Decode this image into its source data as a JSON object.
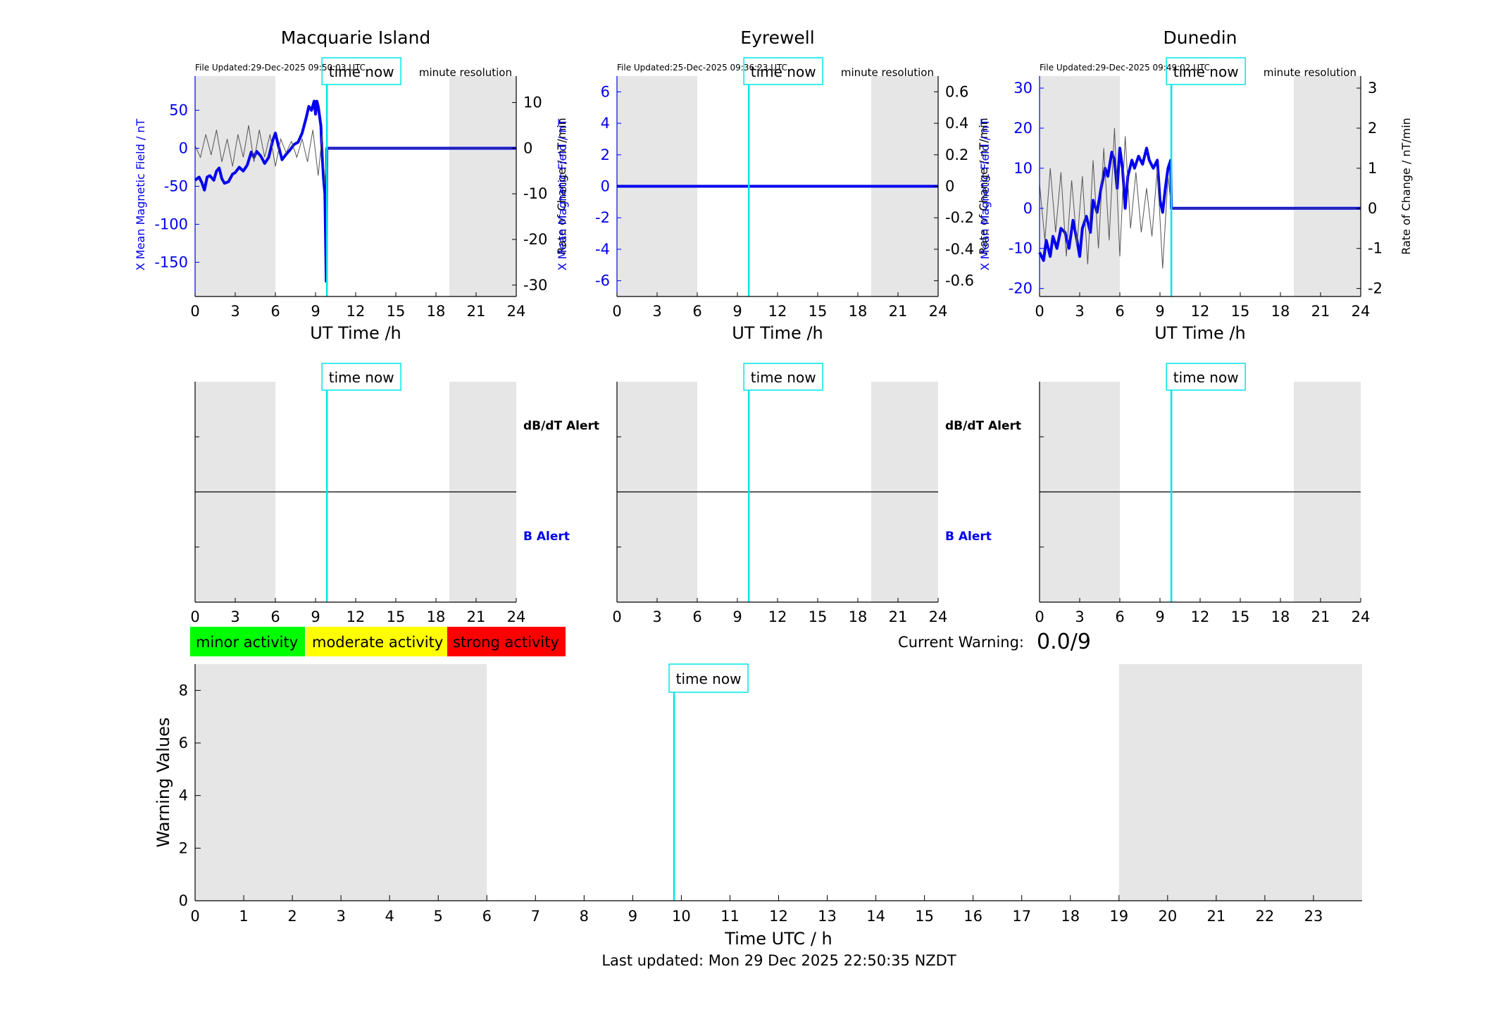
{
  "colors": {
    "field": "#0000ee",
    "rate": "#000000",
    "time_now": "#00e5e5",
    "night_shade": "#e6e6e6",
    "minor": "#00ff00",
    "moderate": "#ffff00",
    "strong": "#ff0000"
  },
  "chart_data": [
    {
      "id": "macquarie-mag",
      "type": "line",
      "title": "Macquarie Island",
      "file_updated": "File Updated:29-Dec-2025 09:50:03 UTC",
      "resolution": "minute resolution",
      "xlabel": "UT Time /h",
      "ylabel_left": "X Mean Magnetic Field / nT",
      "ylabel_right": "Rate of Change / nT/min",
      "xlim": [
        0,
        24
      ],
      "ylim_left": [
        -195,
        95
      ],
      "ylim_right": [
        -32.5,
        15.8
      ],
      "xticks": [
        0,
        3,
        6,
        9,
        12,
        15,
        18,
        21,
        24
      ],
      "yticks_left": [
        -150,
        -100,
        -50,
        0,
        50
      ],
      "yticks_right": [
        -30,
        -20,
        -10,
        0,
        10
      ],
      "night": [
        [
          0,
          6
        ],
        [
          19,
          24
        ]
      ],
      "time_now": 9.85,
      "time_now_label": "time now",
      "series": [
        {
          "axis": "left",
          "points": [
            [
              0,
              -42
            ],
            [
              0.3,
              -38
            ],
            [
              0.5,
              -45
            ],
            [
              0.7,
              -55
            ],
            [
              0.9,
              -38
            ],
            [
              1.1,
              -36
            ],
            [
              1.4,
              -42
            ],
            [
              1.6,
              -30
            ],
            [
              1.8,
              -26
            ],
            [
              2.0,
              -40
            ],
            [
              2.2,
              -46
            ],
            [
              2.5,
              -44
            ],
            [
              2.8,
              -34
            ],
            [
              3.0,
              -32
            ],
            [
              3.3,
              -25
            ],
            [
              3.6,
              -30
            ],
            [
              3.9,
              -22
            ],
            [
              4.2,
              -5
            ],
            [
              4.4,
              -12
            ],
            [
              4.6,
              -4
            ],
            [
              4.9,
              -10
            ],
            [
              5.2,
              -20
            ],
            [
              5.5,
              -12
            ],
            [
              5.8,
              10
            ],
            [
              6.0,
              20
            ],
            [
              6.2,
              5
            ],
            [
              6.5,
              -15
            ],
            [
              6.8,
              -8
            ],
            [
              7.1,
              -2
            ],
            [
              7.4,
              5
            ],
            [
              7.7,
              8
            ],
            [
              8.0,
              20
            ],
            [
              8.3,
              40
            ],
            [
              8.5,
              55
            ],
            [
              8.7,
              50
            ],
            [
              8.9,
              62
            ],
            [
              9.0,
              45
            ],
            [
              9.1,
              62
            ],
            [
              9.2,
              55
            ],
            [
              9.4,
              30
            ],
            [
              9.5,
              -10
            ],
            [
              9.6,
              -40
            ],
            [
              9.7,
              -60
            ],
            [
              9.75,
              -120
            ],
            [
              9.8,
              -175
            ],
            [
              9.85,
              0
            ],
            [
              24,
              0
            ]
          ]
        },
        {
          "axis": "right",
          "points": [
            [
              0,
              0.5
            ],
            [
              0.4,
              -2
            ],
            [
              0.8,
              3
            ],
            [
              1.2,
              -1.5
            ],
            [
              1.6,
              4
            ],
            [
              2.0,
              -3
            ],
            [
              2.4,
              2
            ],
            [
              2.8,
              -4
            ],
            [
              3.2,
              3
            ],
            [
              3.6,
              -2
            ],
            [
              4.0,
              5
            ],
            [
              4.4,
              -3
            ],
            [
              4.8,
              4
            ],
            [
              5.2,
              -2
            ],
            [
              5.6,
              3
            ],
            [
              6.0,
              -4
            ],
            [
              6.4,
              2
            ],
            [
              6.8,
              -1
            ],
            [
              7.2,
              1.5
            ],
            [
              7.6,
              -2
            ],
            [
              8.0,
              2
            ],
            [
              8.4,
              -3
            ],
            [
              8.8,
              4
            ],
            [
              9.2,
              -6
            ],
            [
              9.5,
              3
            ],
            [
              9.7,
              -8
            ],
            [
              9.85,
              0
            ],
            [
              24,
              0
            ]
          ]
        }
      ]
    },
    {
      "id": "eyrewell-mag",
      "type": "line",
      "title": "Eyrewell",
      "file_updated": "File Updated:25-Dec-2025 09:36:23 UTC",
      "resolution": "minute resolution",
      "xlabel": "UT Time /h",
      "ylabel_left": "X Mean Magnetic Field / nT",
      "ylabel_right": "Rate of Change / nT/min",
      "xlim": [
        0,
        24
      ],
      "ylim_left": [
        -7,
        7
      ],
      "ylim_right": [
        -0.7,
        0.7
      ],
      "xticks": [
        0,
        3,
        6,
        9,
        12,
        15,
        18,
        21,
        24
      ],
      "yticks_left": [
        -6,
        -4,
        -2,
        0,
        2,
        4,
        6
      ],
      "yticks_right": [
        -0.6,
        -0.4,
        -0.2,
        0,
        0.2,
        0.4,
        0.6
      ],
      "night": [
        [
          0,
          6
        ],
        [
          19,
          24
        ]
      ],
      "time_now": 9.85,
      "time_now_label": "time now",
      "series": [
        {
          "axis": "left",
          "points": [
            [
              0,
              0
            ],
            [
              24,
              0
            ]
          ]
        }
      ]
    },
    {
      "id": "dunedin-mag",
      "type": "line",
      "title": "Dunedin",
      "file_updated": "File Updated:29-Dec-2025 09:49:02 UTC",
      "resolution": "minute resolution",
      "xlabel": "UT Time /h",
      "ylabel_left": "X Mean Magnetic Field / nT",
      "ylabel_right": "Rate of Change / nT/min",
      "xlim": [
        0,
        24
      ],
      "ylim_left": [
        -22,
        33
      ],
      "ylim_right": [
        -2.2,
        3.3
      ],
      "xticks": [
        0,
        3,
        6,
        9,
        12,
        15,
        18,
        21,
        24
      ],
      "yticks_left": [
        -20,
        -10,
        0,
        10,
        20,
        30
      ],
      "yticks_right": [
        -2,
        -1,
        0,
        1,
        2,
        3
      ],
      "night": [
        [
          0,
          6
        ],
        [
          19,
          24
        ]
      ],
      "time_now": 9.85,
      "time_now_label": "time now",
      "series": [
        {
          "axis": "left",
          "points": [
            [
              0,
              -11
            ],
            [
              0.3,
              -13
            ],
            [
              0.5,
              -8
            ],
            [
              0.8,
              -12
            ],
            [
              1.0,
              -7
            ],
            [
              1.3,
              -10
            ],
            [
              1.6,
              -5
            ],
            [
              1.9,
              -6
            ],
            [
              2.2,
              -10
            ],
            [
              2.5,
              -3
            ],
            [
              2.8,
              -8
            ],
            [
              3.0,
              -12
            ],
            [
              3.2,
              -5
            ],
            [
              3.5,
              -2
            ],
            [
              3.8,
              -6
            ],
            [
              4.0,
              2
            ],
            [
              4.3,
              -1
            ],
            [
              4.6,
              5
            ],
            [
              4.9,
              10
            ],
            [
              5.1,
              8
            ],
            [
              5.4,
              14
            ],
            [
              5.6,
              12
            ],
            [
              5.8,
              5
            ],
            [
              6.0,
              15
            ],
            [
              6.2,
              10
            ],
            [
              6.4,
              0
            ],
            [
              6.6,
              8
            ],
            [
              6.9,
              12
            ],
            [
              7.1,
              10
            ],
            [
              7.4,
              13
            ],
            [
              7.7,
              11
            ],
            [
              8.0,
              15
            ],
            [
              8.2,
              12
            ],
            [
              8.5,
              10
            ],
            [
              8.8,
              12
            ],
            [
              9.0,
              2
            ],
            [
              9.2,
              -1
            ],
            [
              9.4,
              5
            ],
            [
              9.6,
              10
            ],
            [
              9.8,
              12
            ],
            [
              9.85,
              0
            ],
            [
              24,
              0
            ]
          ]
        },
        {
          "axis": "right",
          "points": [
            [
              0,
              0.6
            ],
            [
              0.4,
              -0.8
            ],
            [
              0.8,
              1.0
            ],
            [
              1.2,
              -0.6
            ],
            [
              1.6,
              0.9
            ],
            [
              2.0,
              -1.2
            ],
            [
              2.4,
              0.7
            ],
            [
              2.8,
              -0.9
            ],
            [
              3.2,
              0.8
            ],
            [
              3.6,
              -1.4
            ],
            [
              4.0,
              1.2
            ],
            [
              4.4,
              -1.0
            ],
            [
              4.8,
              1.5
            ],
            [
              5.2,
              -0.8
            ],
            [
              5.6,
              2.0
            ],
            [
              6.0,
              -1.2
            ],
            [
              6.4,
              1.8
            ],
            [
              6.8,
              -0.5
            ],
            [
              7.2,
              0.9
            ],
            [
              7.6,
              -0.6
            ],
            [
              8.0,
              0.5
            ],
            [
              8.4,
              -0.7
            ],
            [
              8.8,
              1.0
            ],
            [
              9.2,
              -1.5
            ],
            [
              9.6,
              0.8
            ],
            [
              9.85,
              0
            ],
            [
              24,
              0
            ]
          ]
        }
      ]
    },
    {
      "id": "macquarie-alert",
      "type": "line",
      "xlim": [
        0,
        24
      ],
      "xticks": [
        0,
        3,
        6,
        9,
        12,
        15,
        18,
        21,
        24
      ],
      "night": [
        [
          0,
          6
        ],
        [
          19,
          24
        ]
      ],
      "time_now": 9.85,
      "time_now_label": "time now",
      "label_upper": "dB/dT Alert",
      "label_lower": "B Alert"
    },
    {
      "id": "eyrewell-alert",
      "type": "line",
      "xlim": [
        0,
        24
      ],
      "xticks": [
        0,
        3,
        6,
        9,
        12,
        15,
        18,
        21,
        24
      ],
      "night": [
        [
          0,
          6
        ],
        [
          19,
          24
        ]
      ],
      "time_now": 9.85,
      "time_now_label": "time now",
      "label_upper": "dB/dT Alert",
      "label_lower": "B Alert"
    },
    {
      "id": "dunedin-alert",
      "type": "line",
      "xlim": [
        0,
        24
      ],
      "xticks": [
        0,
        3,
        6,
        9,
        12,
        15,
        18,
        21,
        24
      ],
      "night": [
        [
          0,
          6
        ],
        [
          19,
          24
        ]
      ],
      "time_now": 9.85,
      "time_now_label": "time now"
    },
    {
      "id": "warning-values",
      "type": "bar",
      "xlabel": "Time UTC / h",
      "ylabel": "Warning Values",
      "xlim": [
        0,
        24
      ],
      "ylim": [
        0,
        9
      ],
      "xticks": [
        0,
        1,
        2,
        3,
        4,
        5,
        6,
        7,
        8,
        9,
        10,
        11,
        12,
        13,
        14,
        15,
        16,
        17,
        18,
        19,
        20,
        21,
        22,
        23
      ],
      "yticks": [
        0,
        2,
        4,
        6,
        8
      ],
      "night": [
        [
          0,
          6
        ],
        [
          19,
          24
        ]
      ],
      "time_now": 9.85,
      "time_now_label": "time now",
      "values": []
    }
  ],
  "legend": {
    "minor": "minor activity",
    "moderate": "moderate activity",
    "strong": "strong activity"
  },
  "current_warning": {
    "label": "Current Warning:",
    "value": "0.0/9"
  },
  "footer": {
    "last_updated": "Last updated: Mon 29 Dec 2025 22:50:35 NZDT"
  }
}
